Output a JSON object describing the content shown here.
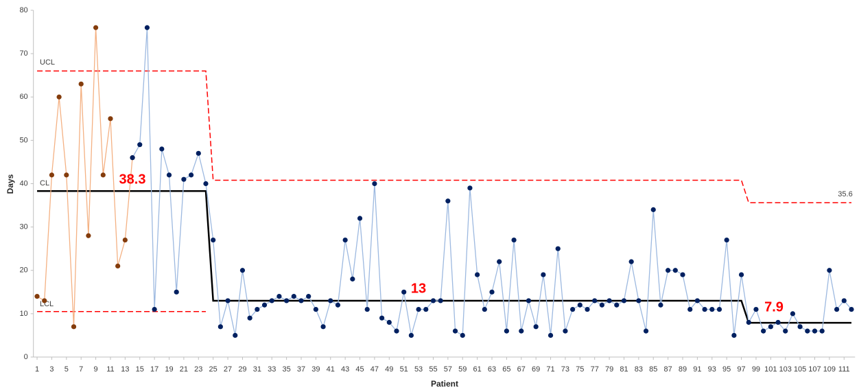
{
  "chart_data": {
    "type": "line",
    "x_label": "Patient",
    "y_label": "Days",
    "xlim": [
      0.5,
      112.5
    ],
    "ylim": [
      0,
      80
    ],
    "xticks": [
      1,
      3,
      5,
      7,
      9,
      11,
      13,
      15,
      17,
      19,
      21,
      23,
      25,
      27,
      29,
      31,
      33,
      35,
      37,
      39,
      41,
      43,
      45,
      47,
      49,
      51,
      53,
      55,
      57,
      59,
      61,
      63,
      65,
      67,
      69,
      71,
      73,
      75,
      77,
      79,
      81,
      83,
      85,
      87,
      89,
      91,
      93,
      95,
      97,
      99,
      101,
      103,
      105,
      107,
      109,
      111
    ],
    "yticks": [
      0,
      10,
      20,
      30,
      40,
      50,
      60,
      70,
      80
    ],
    "series": [
      {
        "style": "markers",
        "color": "#f4b183",
        "marker_color": "#843c0c",
        "x": [
          1,
          2,
          3,
          4,
          5,
          6,
          7,
          8,
          9,
          10,
          11,
          12,
          13,
          14
        ],
        "values": [
          14,
          13,
          42,
          60,
          42,
          7,
          63,
          28,
          76,
          42,
          55,
          21,
          27,
          46
        ]
      },
      {
        "style": "markers",
        "color": "#9db9e0",
        "marker_color": "#002060",
        "x": [
          14,
          15,
          16,
          17,
          18,
          19,
          20,
          21,
          22,
          23,
          24,
          25,
          26,
          27,
          28,
          29,
          30,
          31,
          32,
          33,
          34,
          35,
          36,
          37,
          38,
          39,
          40,
          41,
          42,
          43,
          44,
          45,
          46,
          47,
          48,
          49,
          50,
          51,
          52,
          53,
          54,
          55,
          56,
          57,
          58,
          59,
          60,
          61,
          62,
          63,
          64,
          65,
          66,
          67,
          68,
          69,
          70,
          71,
          72,
          73,
          74,
          75,
          76,
          77,
          78,
          79,
          80,
          81,
          82,
          83,
          84,
          85,
          86,
          87,
          88,
          89,
          90,
          91,
          92,
          93,
          94,
          95,
          96,
          97,
          98,
          99,
          100,
          101,
          102,
          103,
          104,
          105,
          106,
          107,
          108,
          109,
          110,
          111,
          112
        ],
        "values": [
          46,
          49,
          76,
          11,
          48,
          42,
          15,
          41,
          42,
          47,
          40,
          27,
          7,
          13,
          5,
          20,
          9,
          11,
          12,
          13,
          14,
          13,
          14,
          13,
          14,
          11,
          7,
          13,
          12,
          27,
          18,
          32,
          11,
          40,
          9,
          8,
          6,
          15,
          5,
          11,
          11,
          13,
          13,
          36,
          6,
          5,
          39,
          19,
          11,
          15,
          22,
          6,
          27,
          6,
          13,
          7,
          19,
          5,
          25,
          6,
          11,
          12,
          11,
          13,
          12,
          13,
          12,
          13,
          22,
          13,
          6,
          34,
          12,
          20,
          20,
          19,
          11,
          13,
          11,
          11,
          11,
          27,
          5,
          19,
          8,
          11,
          6,
          7,
          8,
          6,
          10,
          7,
          6,
          6,
          6,
          20,
          11,
          13,
          11
        ]
      },
      {
        "name": "UCL",
        "style": "dashed",
        "color": "#ff0000",
        "x": [
          1,
          24,
          25,
          97,
          98,
          112
        ],
        "values": [
          66,
          66,
          40.8,
          40.8,
          35.6,
          35.6
        ]
      },
      {
        "name": "CL",
        "style": "solid",
        "color": "#000000",
        "x": [
          1,
          24,
          25,
          97,
          98,
          112
        ],
        "values": [
          38.3,
          38.3,
          13,
          13,
          7.9,
          7.9
        ]
      },
      {
        "name": "LCL",
        "style": "dashed",
        "color": "#ff0000",
        "x": [
          1,
          24
        ],
        "values": [
          10.5,
          10.5
        ]
      }
    ],
    "annotations": [
      "38.3",
      "13",
      "7.9",
      "35.6"
    ]
  }
}
